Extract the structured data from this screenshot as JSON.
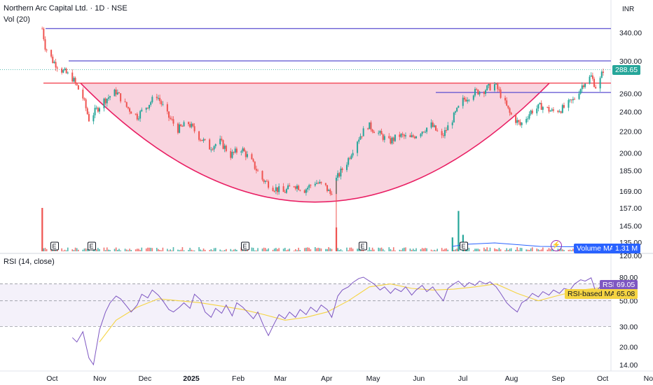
{
  "header": {
    "symbol_line": "Northern Arc Capital Ltd. · 1D · NSE",
    "currency": "INR",
    "volume_indicator": "Vol (20)",
    "rsi_indicator": "RSI (14, close)"
  },
  "badges": {
    "last_price": "288.65",
    "volume_ma_label": "Volume MA",
    "volume_ma_value": "1.31 M",
    "rsi_label": "RSI",
    "rsi_value": "69.05",
    "rsi_ma_label": "RSI-based MA",
    "rsi_ma_value": "65.08"
  },
  "colors": {
    "up": "#26a69a",
    "down": "#ef5350",
    "cup_fill": "#f7c6d4",
    "cup_line": "#e91e63",
    "resistance_line": "#f23645",
    "level_line": "#5b4fd1",
    "rsi_line": "#7e57c2",
    "rsi_ma_line": "#f5d442",
    "volume_ma": "#2962ff"
  },
  "earnings_markers": [
    "E",
    "E",
    "E",
    "E",
    "E"
  ],
  "chart_data": [
    {
      "type": "candlestick",
      "title": "Northern Arc Capital Ltd. · 1D · NSE",
      "y_scale": "log",
      "y_ticks": [
        340.0,
        300.0,
        260.0,
        240.0,
        220.0,
        200.0,
        185.0,
        169.0,
        157.0,
        145.0,
        135.0,
        120.0
      ],
      "x_tick_labels": [
        "Oct",
        "Nov",
        "Dec",
        "2025",
        "Feb",
        "Mar",
        "Apr",
        "May",
        "Jun",
        "Jul",
        "Aug",
        "Sep",
        "Oct",
        "Nov"
      ],
      "last_price": 288.65,
      "horizontal_lines": [
        346,
        300,
        272,
        261
      ],
      "price_path": [
        [
          "2024-09-24",
          346
        ],
        [
          "2024-09-26",
          320
        ],
        [
          "2024-10-01",
          300
        ],
        [
          "2024-10-07",
          288
        ],
        [
          "2024-10-14",
          278
        ],
        [
          "2024-10-21",
          255
        ],
        [
          "2024-10-25",
          232
        ],
        [
          "2024-11-04",
          252
        ],
        [
          "2024-11-12",
          262
        ],
        [
          "2024-11-19",
          245
        ],
        [
          "2024-11-26",
          235
        ],
        [
          "2024-12-03",
          247
        ],
        [
          "2024-12-09",
          258
        ],
        [
          "2024-12-16",
          236
        ],
        [
          "2024-12-23",
          222
        ],
        [
          "2024-12-30",
          228
        ],
        [
          "2025-01-06",
          215
        ],
        [
          "2025-01-13",
          205
        ],
        [
          "2025-01-20",
          210
        ],
        [
          "2025-01-27",
          198
        ],
        [
          "2025-02-03",
          204
        ],
        [
          "2025-02-10",
          192
        ],
        [
          "2025-02-17",
          178
        ],
        [
          "2025-02-24",
          172
        ],
        [
          "2025-03-03",
          168
        ],
        [
          "2025-03-10",
          174
        ],
        [
          "2025-03-17",
          170
        ],
        [
          "2025-03-24",
          176
        ],
        [
          "2025-03-31",
          172
        ],
        [
          "2025-04-03",
          167
        ],
        [
          "2025-04-07",
          178
        ],
        [
          "2025-04-14",
          192
        ],
        [
          "2025-04-21",
          212
        ],
        [
          "2025-04-28",
          226
        ],
        [
          "2025-05-05",
          218
        ],
        [
          "2025-05-12",
          210
        ],
        [
          "2025-05-19",
          216
        ],
        [
          "2025-05-26",
          213
        ],
        [
          "2025-06-02",
          220
        ],
        [
          "2025-06-09",
          226
        ],
        [
          "2025-06-16",
          214
        ],
        [
          "2025-06-23",
          232
        ],
        [
          "2025-06-30",
          252
        ],
        [
          "2025-07-07",
          261
        ],
        [
          "2025-07-14",
          264
        ],
        [
          "2025-07-21",
          270
        ],
        [
          "2025-07-24",
          262
        ],
        [
          "2025-07-31",
          238
        ],
        [
          "2025-08-07",
          226
        ],
        [
          "2025-08-14",
          240
        ],
        [
          "2025-08-21",
          246
        ],
        [
          "2025-08-28",
          240
        ],
        [
          "2025-09-04",
          243
        ],
        [
          "2025-09-11",
          252
        ],
        [
          "2025-09-18",
          272
        ],
        [
          "2025-09-23",
          280
        ],
        [
          "2025-09-26",
          268
        ],
        [
          "2025-09-29",
          276
        ],
        [
          "2025-10-01",
          288.65
        ]
      ]
    },
    {
      "type": "bar",
      "title": "Vol (20)",
      "moving_average_label": "Volume MA",
      "moving_average_value": "1.31 M",
      "spikes": [
        [
          "2024-09-24",
          1.0
        ],
        [
          "2025-04-07",
          0.55
        ],
        [
          "2025-06-23",
          0.32
        ],
        [
          "2025-06-27",
          0.93
        ],
        [
          "2025-06-30",
          0.38
        ],
        [
          "2025-07-02",
          0.22
        ]
      ]
    },
    {
      "type": "line",
      "title": "RSI (14, close)",
      "y_ticks": [
        80.0,
        50.0,
        30.0,
        20.0,
        14.0
      ],
      "band": [
        30,
        70
      ],
      "series": [
        {
          "name": "RSI",
          "last": 69.05,
          "points": [
            [
              "2024-10-14",
              24
            ],
            [
              "2024-10-17",
              22
            ],
            [
              "2024-10-21",
              27
            ],
            [
              "2024-10-25",
              16
            ],
            [
              "2024-10-28",
              14
            ],
            [
              "2024-11-01",
              28
            ],
            [
              "2024-11-05",
              40
            ],
            [
              "2024-11-08",
              48
            ],
            [
              "2024-11-12",
              55
            ],
            [
              "2024-11-15",
              52
            ],
            [
              "2024-11-19",
              45
            ],
            [
              "2024-11-22",
              40
            ],
            [
              "2024-11-26",
              46
            ],
            [
              "2024-11-29",
              57
            ],
            [
              "2024-12-03",
              53
            ],
            [
              "2024-12-06",
              62
            ],
            [
              "2024-12-10",
              56
            ],
            [
              "2024-12-13",
              50
            ],
            [
              "2024-12-17",
              42
            ],
            [
              "2024-12-20",
              40
            ],
            [
              "2024-12-24",
              44
            ],
            [
              "2024-12-27",
              48
            ],
            [
              "2024-12-31",
              43
            ],
            [
              "2025-01-03",
              57
            ],
            [
              "2025-01-07",
              51
            ],
            [
              "2025-01-10",
              40
            ],
            [
              "2025-01-14",
              36
            ],
            [
              "2025-01-17",
              43
            ],
            [
              "2025-01-21",
              39
            ],
            [
              "2025-01-24",
              46
            ],
            [
              "2025-01-28",
              37
            ],
            [
              "2025-01-31",
              48
            ],
            [
              "2025-02-04",
              44
            ],
            [
              "2025-02-07",
              40
            ],
            [
              "2025-02-11",
              35
            ],
            [
              "2025-02-14",
              40
            ],
            [
              "2025-02-18",
              30
            ],
            [
              "2025-02-21",
              25
            ],
            [
              "2025-02-25",
              32
            ],
            [
              "2025-02-28",
              38
            ],
            [
              "2025-03-04",
              35
            ],
            [
              "2025-03-07",
              40
            ],
            [
              "2025-03-11",
              36
            ],
            [
              "2025-03-14",
              42
            ],
            [
              "2025-03-18",
              38
            ],
            [
              "2025-03-21",
              44
            ],
            [
              "2025-03-25",
              40
            ],
            [
              "2025-03-28",
              46
            ],
            [
              "2025-04-01",
              42
            ],
            [
              "2025-04-04",
              36
            ],
            [
              "2025-04-08",
              55
            ],
            [
              "2025-04-11",
              62
            ],
            [
              "2025-04-15",
              66
            ],
            [
              "2025-04-18",
              72
            ],
            [
              "2025-04-22",
              78
            ],
            [
              "2025-04-25",
              80
            ],
            [
              "2025-04-29",
              74
            ],
            [
              "2025-05-02",
              70
            ],
            [
              "2025-05-06",
              62
            ],
            [
              "2025-05-09",
              66
            ],
            [
              "2025-05-13",
              58
            ],
            [
              "2025-05-16",
              64
            ],
            [
              "2025-05-20",
              60
            ],
            [
              "2025-05-23",
              66
            ],
            [
              "2025-05-27",
              56
            ],
            [
              "2025-05-30",
              62
            ],
            [
              "2025-06-03",
              68
            ],
            [
              "2025-06-06",
              60
            ],
            [
              "2025-06-10",
              66
            ],
            [
              "2025-06-13",
              58
            ],
            [
              "2025-06-17",
              50
            ],
            [
              "2025-06-20",
              64
            ],
            [
              "2025-06-24",
              70
            ],
            [
              "2025-06-27",
              74
            ],
            [
              "2025-07-01",
              66
            ],
            [
              "2025-07-04",
              72
            ],
            [
              "2025-07-08",
              68
            ],
            [
              "2025-07-11",
              74
            ],
            [
              "2025-07-15",
              70
            ],
            [
              "2025-07-18",
              73
            ],
            [
              "2025-07-22",
              66
            ],
            [
              "2025-07-25",
              58
            ],
            [
              "2025-07-29",
              48
            ],
            [
              "2025-08-01",
              44
            ],
            [
              "2025-08-05",
              40
            ],
            [
              "2025-08-08",
              48
            ],
            [
              "2025-08-12",
              52
            ],
            [
              "2025-08-15",
              58
            ],
            [
              "2025-08-19",
              54
            ],
            [
              "2025-08-22",
              60
            ],
            [
              "2025-08-26",
              56
            ],
            [
              "2025-08-29",
              62
            ],
            [
              "2025-09-02",
              58
            ],
            [
              "2025-09-05",
              64
            ],
            [
              "2025-09-09",
              62
            ],
            [
              "2025-09-12",
              70
            ],
            [
              "2025-09-16",
              76
            ],
            [
              "2025-09-19",
              74
            ],
            [
              "2025-09-23",
              79
            ],
            [
              "2025-09-26",
              60
            ],
            [
              "2025-09-29",
              66
            ],
            [
              "2025-10-01",
              69.05
            ]
          ]
        },
        {
          "name": "RSI-based MA",
          "last": 65.08,
          "points": [
            [
              "2024-11-01",
              22
            ],
            [
              "2024-11-12",
              34
            ],
            [
              "2024-11-26",
              44
            ],
            [
              "2024-12-10",
              52
            ],
            [
              "2024-12-24",
              50
            ],
            [
              "2025-01-07",
              48
            ],
            [
              "2025-01-21",
              45
            ],
            [
              "2025-02-04",
              42
            ],
            [
              "2025-02-18",
              38
            ],
            [
              "2025-03-04",
              34
            ],
            [
              "2025-03-18",
              36
            ],
            [
              "2025-04-01",
              40
            ],
            [
              "2025-04-15",
              50
            ],
            [
              "2025-04-29",
              66
            ],
            [
              "2025-05-13",
              70
            ],
            [
              "2025-05-27",
              64
            ],
            [
              "2025-06-10",
              62
            ],
            [
              "2025-06-24",
              63
            ],
            [
              "2025-07-08",
              66
            ],
            [
              "2025-07-22",
              70
            ],
            [
              "2025-08-05",
              58
            ],
            [
              "2025-08-19",
              50
            ],
            [
              "2025-09-02",
              56
            ],
            [
              "2025-09-16",
              62
            ],
            [
              "2025-10-01",
              65.08
            ]
          ]
        }
      ]
    }
  ]
}
